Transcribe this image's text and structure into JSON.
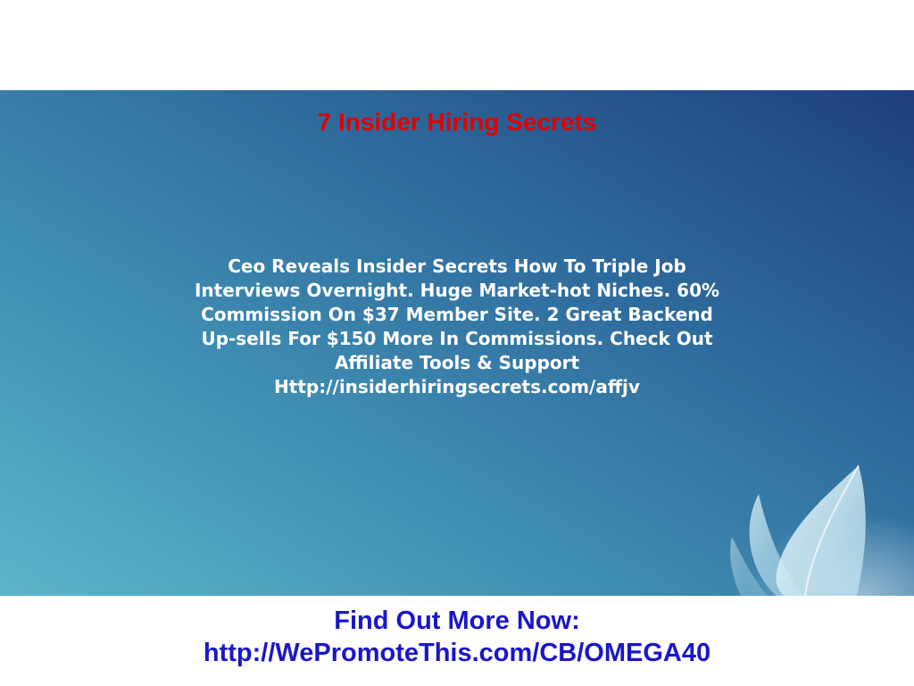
{
  "slide": {
    "title": "7 Insider Hiring Secrets",
    "body": "Ceo Reveals Insider Secrets How To Triple Job\nInterviews Overnight. Huge Market-hot Niches. 60%\nCommission On $37 Member Site. 2 Great Backend\nUp-sells For $150 More In Commissions. Check Out\nAffiliate Tools & Support\nHttp://insiderhiringsecrets.com/affjv"
  },
  "footer": {
    "line1": "Find Out More Now:",
    "line2": "http://WePromoteThis.com/CB/OMEGA40"
  },
  "colors": {
    "title": "#e00000",
    "body_text": "#ffffff",
    "footer_text": "#1a16c8",
    "background_light": "#5cb5c9",
    "background_dark": "#1f3f7c"
  },
  "icons": {
    "decoration": "lotus-flower-icon"
  }
}
